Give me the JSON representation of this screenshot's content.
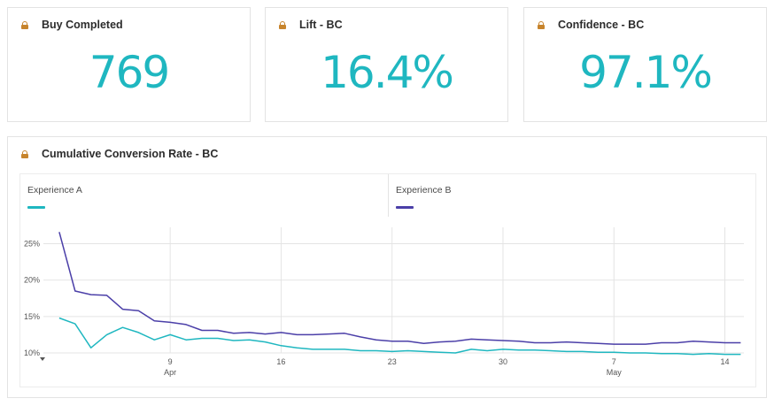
{
  "kpis": [
    {
      "title": "Buy Completed",
      "value": "769"
    },
    {
      "title": "Lift - BC",
      "value": "16.4%"
    },
    {
      "title": "Confidence - BC",
      "value": "97.1%"
    }
  ],
  "chart_card": {
    "title": "Cumulative Conversion Rate - BC"
  },
  "colors": {
    "accent": "#1fb7c0",
    "experience_a": "#1fb7c0",
    "experience_b": "#4b3fa8",
    "lock": "#c7842c"
  },
  "chart_data": {
    "type": "line",
    "title": "Cumulative Conversion Rate - BC",
    "xlabel": "",
    "ylabel": "",
    "y_ticks": [
      "25%",
      "20%",
      "15%",
      "10%"
    ],
    "ylim": [
      10,
      27
    ],
    "x_ticks": [
      {
        "day": 9,
        "label": "9",
        "month": "Apr"
      },
      {
        "day": 16,
        "label": "16",
        "month": ""
      },
      {
        "day": 23,
        "label": "23",
        "month": ""
      },
      {
        "day": 30,
        "label": "30",
        "month": ""
      },
      {
        "day": 37,
        "label": "7",
        "month": "May"
      },
      {
        "day": 44,
        "label": "14",
        "month": ""
      }
    ],
    "grid": true,
    "legend_position": "top",
    "series": [
      {
        "name": "Experience A",
        "x": [
          2,
          3,
          4,
          5,
          6,
          7,
          8,
          9,
          10,
          11,
          12,
          13,
          14,
          15,
          16,
          17,
          18,
          19,
          20,
          21,
          22,
          23,
          24,
          25,
          26,
          27,
          28,
          29,
          30,
          31,
          32,
          33,
          34,
          35,
          36,
          37,
          38,
          39,
          40,
          41,
          42,
          43,
          44,
          45
        ],
        "values": [
          14.8,
          14.0,
          10.7,
          12.5,
          13.5,
          12.8,
          11.8,
          12.5,
          11.8,
          12.0,
          12.0,
          11.7,
          11.8,
          11.5,
          11.0,
          10.7,
          10.5,
          10.5,
          10.5,
          10.3,
          10.3,
          10.2,
          10.3,
          10.2,
          10.1,
          10.0,
          10.5,
          10.3,
          10.5,
          10.4,
          10.4,
          10.3,
          10.2,
          10.2,
          10.1,
          10.1,
          10.0,
          10.0,
          9.9,
          9.9,
          9.8,
          9.9,
          9.8,
          9.8
        ]
      },
      {
        "name": "Experience B",
        "x": [
          2,
          3,
          4,
          5,
          6,
          7,
          8,
          9,
          10,
          11,
          12,
          13,
          14,
          15,
          16,
          17,
          18,
          19,
          20,
          21,
          22,
          23,
          24,
          25,
          26,
          27,
          28,
          29,
          30,
          31,
          32,
          33,
          34,
          35,
          36,
          37,
          38,
          39,
          40,
          41,
          42,
          43,
          44,
          45
        ],
        "values": [
          26.6,
          18.5,
          18.0,
          17.9,
          16.0,
          15.8,
          14.4,
          14.2,
          13.9,
          13.1,
          13.1,
          12.7,
          12.8,
          12.6,
          12.8,
          12.5,
          12.5,
          12.6,
          12.7,
          12.2,
          11.8,
          11.6,
          11.6,
          11.3,
          11.5,
          11.6,
          11.9,
          11.8,
          11.7,
          11.6,
          11.4,
          11.4,
          11.5,
          11.4,
          11.3,
          11.2,
          11.2,
          11.2,
          11.4,
          11.4,
          11.6,
          11.5,
          11.4,
          11.4
        ]
      }
    ]
  }
}
